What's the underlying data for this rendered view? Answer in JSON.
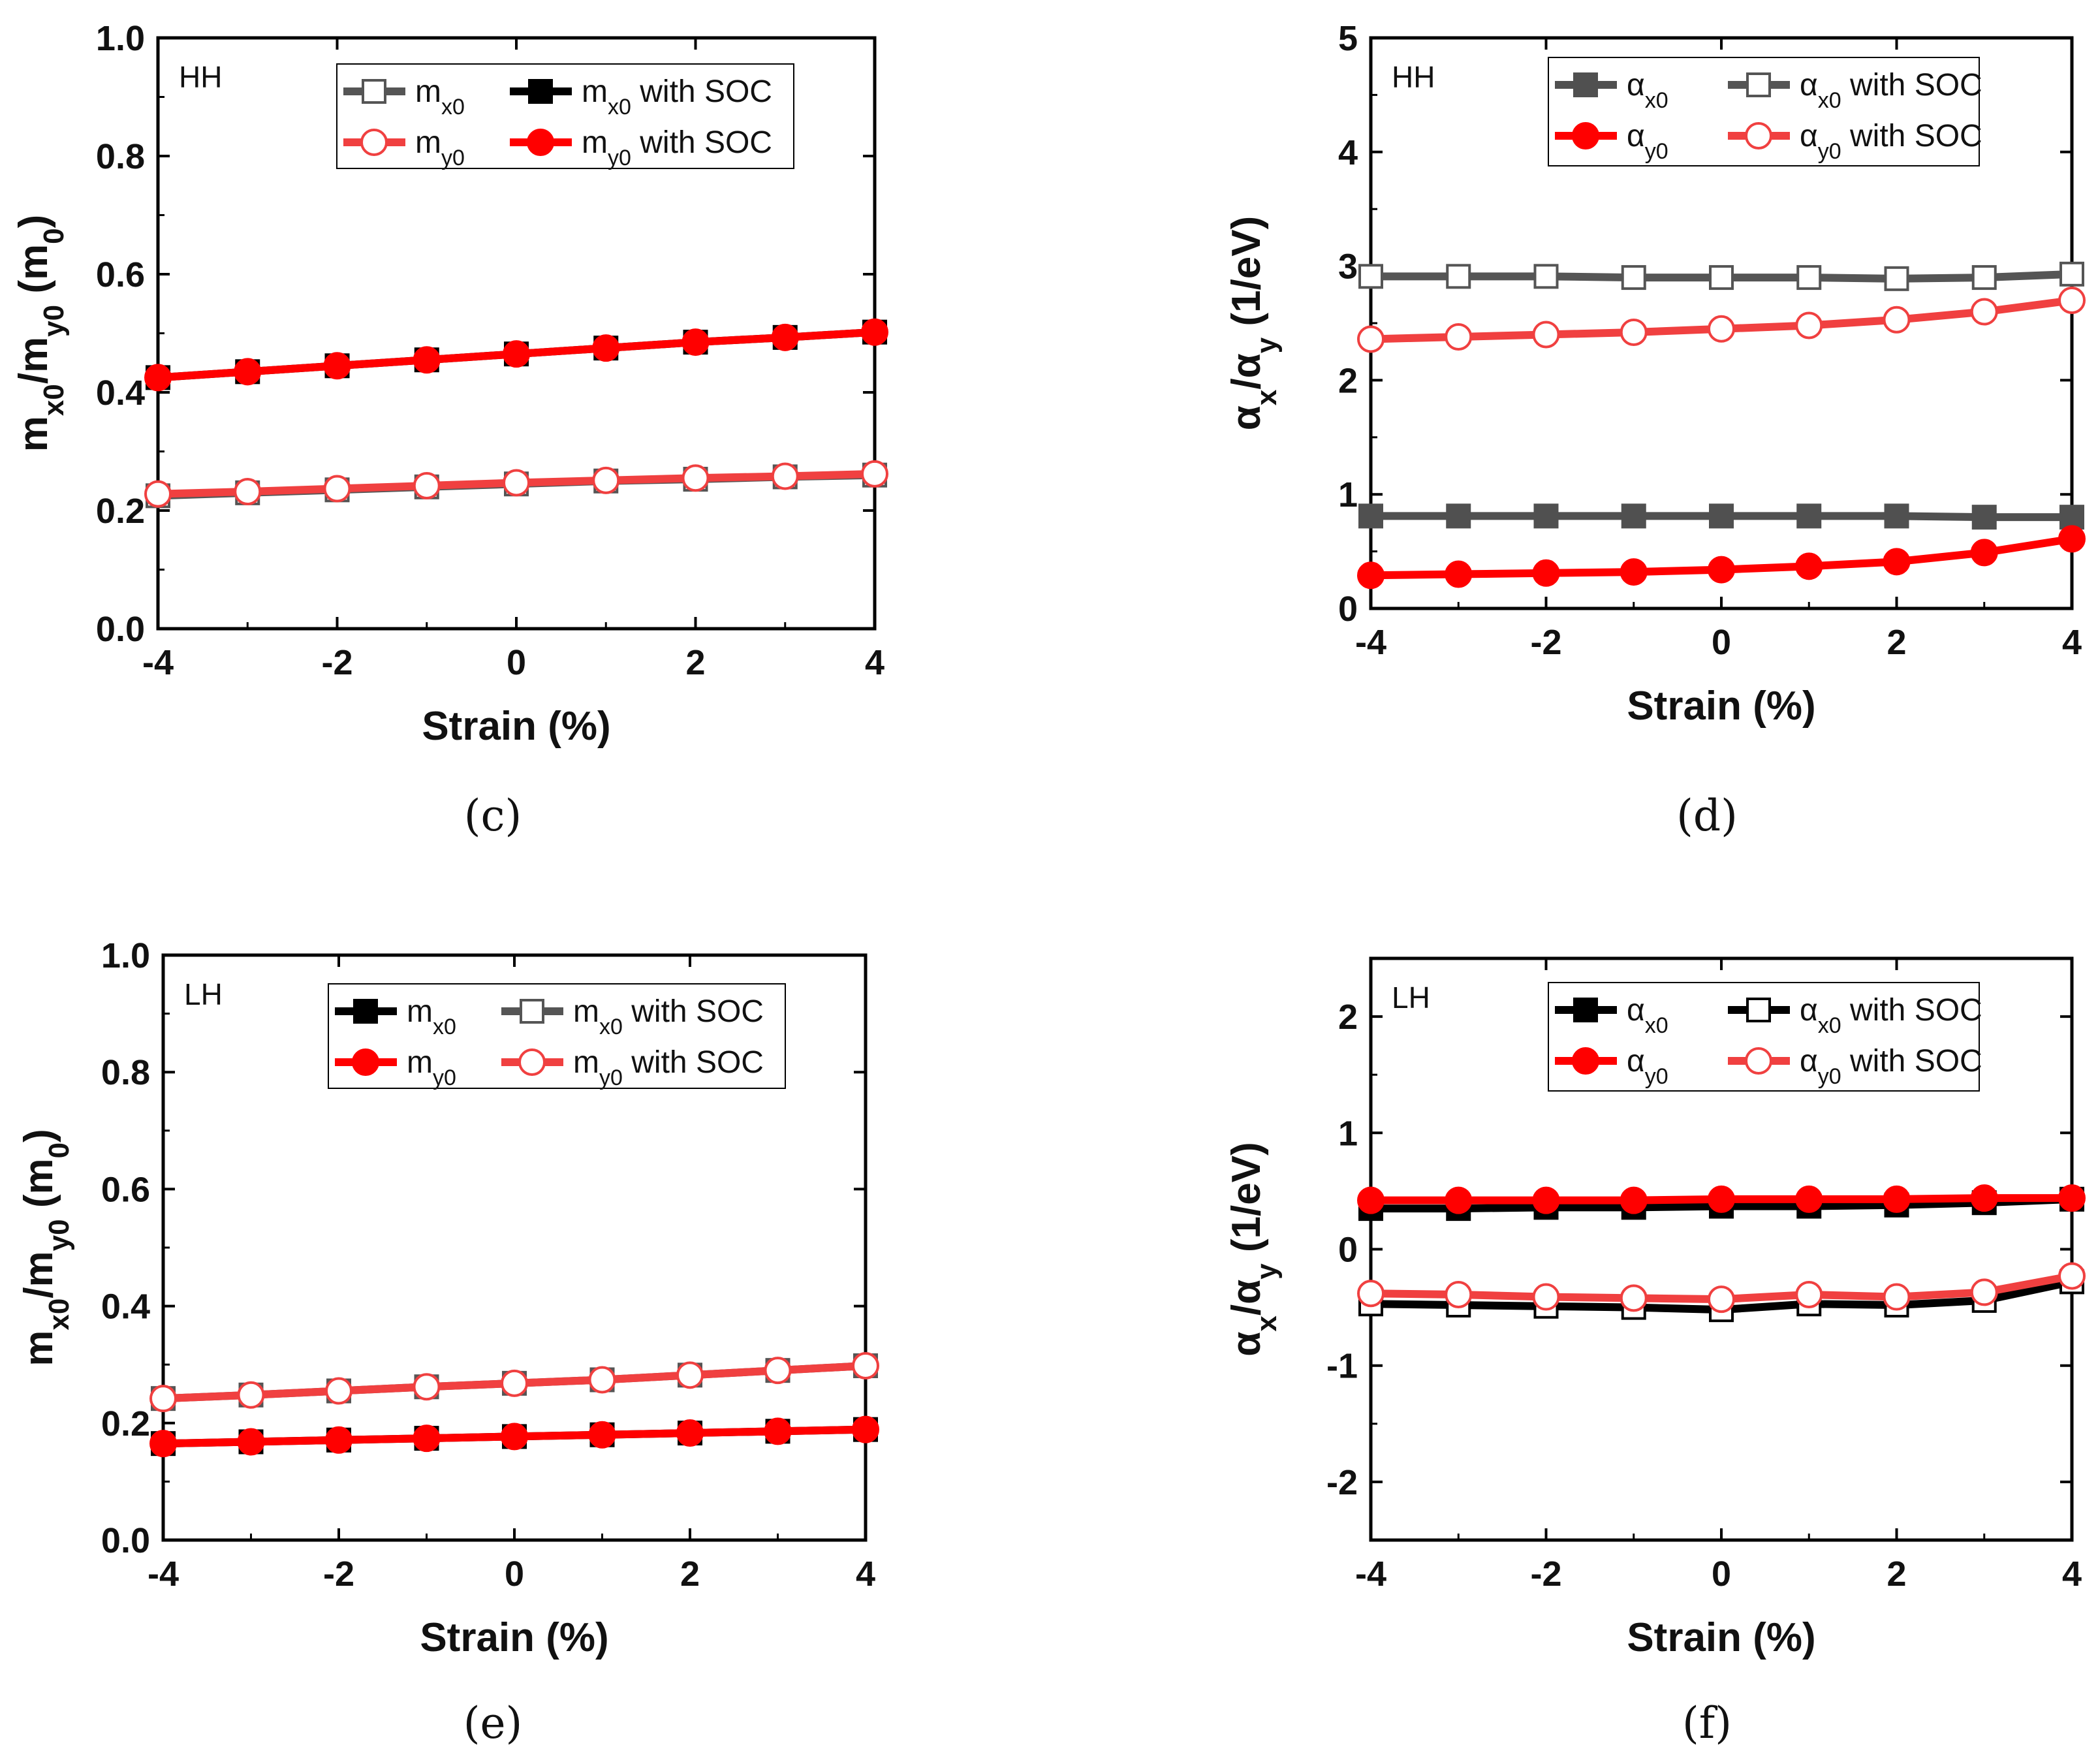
{
  "chart_data": [
    {
      "id": "c",
      "type": "line",
      "caption": "(c)",
      "tag": "HH",
      "xlabel": "Strain (%)",
      "ylabel": {
        "parts": [
          [
            "m",
            ""
          ],
          [
            "x0",
            "sub"
          ],
          [
            "/m",
            ""
          ],
          [
            "y0",
            "sub"
          ],
          [
            " (m",
            ""
          ],
          [
            "0",
            "sub"
          ],
          [
            ")",
            ""
          ]
        ]
      },
      "xlim": [
        -4,
        4
      ],
      "ylim": [
        0,
        1
      ],
      "xticks": [
        -4,
        -2,
        0,
        2,
        4
      ],
      "yticks": [
        0.0,
        0.2,
        0.4,
        0.6,
        0.8,
        1.0
      ],
      "xtick_labels": [
        "-4",
        "-2",
        "0",
        "2",
        "4"
      ],
      "ytick_labels": [
        "0.0",
        "0.2",
        "0.4",
        "0.6",
        "0.8",
        "1.0"
      ],
      "legend": {
        "placement": "top-right",
        "columns": 2
      },
      "x": [
        -4,
        -3,
        -2,
        -1,
        0,
        1,
        2,
        3,
        4
      ],
      "series": [
        {
          "name": "mx0",
          "label_main": "m",
          "label_sub": "x0",
          "label_suffix": "",
          "color": "#555555",
          "marker": "square",
          "fill": "#ffffff",
          "values": [
            0.225,
            0.23,
            0.235,
            0.24,
            0.245,
            0.25,
            0.253,
            0.257,
            0.26
          ]
        },
        {
          "name": "mx0 with SOC",
          "label_main": "m",
          "label_sub": "x0",
          "label_suffix": " with SOC",
          "color": "#000000",
          "marker": "square",
          "fill": "#000000",
          "values": [
            0.425,
            0.435,
            0.445,
            0.455,
            0.465,
            0.475,
            0.485,
            0.493,
            0.502
          ]
        },
        {
          "name": "my0",
          "label_main": "m",
          "label_sub": "y0",
          "label_suffix": "",
          "color": "#f04040",
          "marker": "circle",
          "fill": "#ffffff",
          "values": [
            0.228,
            0.232,
            0.237,
            0.242,
            0.247,
            0.251,
            0.255,
            0.258,
            0.262
          ]
        },
        {
          "name": "my0 with SOC",
          "label_main": "m",
          "label_sub": "y0",
          "label_suffix": " with SOC",
          "color": "#ff0000",
          "marker": "circle",
          "fill": "#ff0000",
          "values": [
            0.425,
            0.435,
            0.445,
            0.455,
            0.465,
            0.475,
            0.485,
            0.493,
            0.502
          ]
        }
      ]
    },
    {
      "id": "d",
      "type": "line",
      "caption": "(d)",
      "tag": "HH",
      "xlabel": "Strain (%)",
      "ylabel": {
        "parts": [
          [
            "α",
            ""
          ],
          [
            "x",
            "sub"
          ],
          [
            "/α",
            ""
          ],
          [
            "y",
            "sub"
          ],
          [
            " (1/eV)",
            ""
          ]
        ]
      },
      "xlim": [
        -4,
        4
      ],
      "ylim": [
        0,
        5
      ],
      "xticks": [
        -4,
        -2,
        0,
        2,
        4
      ],
      "yticks": [
        0,
        1,
        2,
        3,
        4,
        5
      ],
      "xtick_labels": [
        "-4",
        "-2",
        "0",
        "2",
        "4"
      ],
      "ytick_labels": [
        "0",
        "1",
        "2",
        "3",
        "4",
        "5"
      ],
      "legend": {
        "placement": "top-right",
        "columns": 2
      },
      "x": [
        -4,
        -3,
        -2,
        -1,
        0,
        1,
        2,
        3,
        4
      ],
      "series": [
        {
          "name": "αx0",
          "label_main": "α",
          "label_sub": "x0",
          "label_suffix": "",
          "color": "#505050",
          "marker": "square",
          "fill": "#505050",
          "values": [
            0.81,
            0.81,
            0.81,
            0.81,
            0.81,
            0.81,
            0.81,
            0.8,
            0.8
          ]
        },
        {
          "name": "αx0 with SOC",
          "label_main": "α",
          "label_sub": "x0",
          "label_suffix": " with SOC",
          "color": "#555555",
          "marker": "square",
          "fill": "#ffffff",
          "values": [
            2.91,
            2.91,
            2.91,
            2.9,
            2.9,
            2.9,
            2.89,
            2.9,
            2.93
          ]
        },
        {
          "name": "αy0",
          "label_main": "α",
          "label_sub": "y0",
          "label_suffix": "",
          "color": "#ff0000",
          "marker": "circle",
          "fill": "#ff0000",
          "values": [
            0.29,
            0.3,
            0.31,
            0.32,
            0.34,
            0.37,
            0.41,
            0.49,
            0.61
          ]
        },
        {
          "name": "αy0 with SOC",
          "label_main": "α",
          "label_sub": "y0",
          "label_suffix": " with SOC",
          "color": "#f04040",
          "marker": "circle",
          "fill": "#ffffff",
          "values": [
            2.36,
            2.38,
            2.4,
            2.42,
            2.45,
            2.48,
            2.53,
            2.6,
            2.7
          ]
        }
      ]
    },
    {
      "id": "e",
      "type": "line",
      "caption": "(e)",
      "tag": "LH",
      "xlabel": "Strain (%)",
      "ylabel": {
        "parts": [
          [
            "m",
            ""
          ],
          [
            "x0",
            "sub"
          ],
          [
            "/m",
            ""
          ],
          [
            "y0",
            "sub"
          ],
          [
            " (m",
            ""
          ],
          [
            "0",
            "sub"
          ],
          [
            ")",
            ""
          ]
        ]
      },
      "xlim": [
        -4,
        4
      ],
      "ylim": [
        0,
        1
      ],
      "xticks": [
        -4,
        -2,
        0,
        2,
        4
      ],
      "yticks": [
        0.0,
        0.2,
        0.4,
        0.6,
        0.8,
        1.0
      ],
      "xtick_labels": [
        "-4",
        "-2",
        "0",
        "2",
        "4"
      ],
      "ytick_labels": [
        "0.0",
        "0.2",
        "0.4",
        "0.6",
        "0.8",
        "1.0"
      ],
      "legend": {
        "placement": "top-right",
        "columns": 2
      },
      "x": [
        -4,
        -3,
        -2,
        -1,
        0,
        1,
        2,
        3,
        4
      ],
      "series": [
        {
          "name": "mx0",
          "label_main": "m",
          "label_sub": "x0",
          "label_suffix": "",
          "color": "#000000",
          "marker": "square",
          "fill": "#000000",
          "values": [
            0.165,
            0.168,
            0.171,
            0.174,
            0.177,
            0.18,
            0.183,
            0.186,
            0.189
          ]
        },
        {
          "name": "mx0 with SOC",
          "label_main": "m",
          "label_sub": "x0",
          "label_suffix": " with SOC",
          "color": "#555555",
          "marker": "square",
          "fill": "#ffffff",
          "values": [
            0.242,
            0.248,
            0.255,
            0.262,
            0.268,
            0.274,
            0.282,
            0.29,
            0.298
          ]
        },
        {
          "name": "my0",
          "label_main": "m",
          "label_sub": "y0",
          "label_suffix": "",
          "color": "#ff0000",
          "marker": "circle",
          "fill": "#ff0000",
          "values": [
            0.165,
            0.168,
            0.171,
            0.174,
            0.177,
            0.18,
            0.183,
            0.186,
            0.189
          ]
        },
        {
          "name": "my0 with SOC",
          "label_main": "m",
          "label_sub": "y0",
          "label_suffix": " with SOC",
          "color": "#f04040",
          "marker": "circle",
          "fill": "#ffffff",
          "values": [
            0.242,
            0.248,
            0.255,
            0.262,
            0.268,
            0.274,
            0.282,
            0.29,
            0.298
          ]
        }
      ]
    },
    {
      "id": "f",
      "type": "line",
      "caption": "(f)",
      "tag": "LH",
      "xlabel": "Strain (%)",
      "ylabel": {
        "parts": [
          [
            "α",
            ""
          ],
          [
            "x",
            "sub"
          ],
          [
            "/α",
            ""
          ],
          [
            "y",
            "sub"
          ],
          [
            " (1/eV)",
            ""
          ]
        ]
      },
      "xlim": [
        -4,
        4
      ],
      "ylim": [
        -2.5,
        2.5
      ],
      "xticks": [
        -4,
        -2,
        0,
        2,
        4
      ],
      "yticks": [
        -2,
        -1,
        0,
        1,
        2
      ],
      "xtick_labels": [
        "-4",
        "-2",
        "0",
        "2",
        "4"
      ],
      "ytick_labels": [
        "-2",
        "-1",
        "0",
        "1",
        "2"
      ],
      "legend": {
        "placement": "top-right",
        "columns": 2
      },
      "x": [
        -4,
        -3,
        -2,
        -1,
        0,
        1,
        2,
        3,
        4
      ],
      "series": [
        {
          "name": "αx0",
          "label_main": "α",
          "label_sub": "x0",
          "label_suffix": "",
          "color": "#000000",
          "marker": "square",
          "fill": "#000000",
          "values": [
            0.35,
            0.35,
            0.36,
            0.36,
            0.37,
            0.37,
            0.38,
            0.4,
            0.43
          ]
        },
        {
          "name": "αx0 with SOC",
          "label_main": "α",
          "label_sub": "x0",
          "label_suffix": " with SOC",
          "color": "#000000",
          "marker": "square",
          "fill": "#ffffff",
          "values": [
            -0.47,
            -0.48,
            -0.49,
            -0.5,
            -0.52,
            -0.47,
            -0.48,
            -0.44,
            -0.28
          ]
        },
        {
          "name": "αy0",
          "label_main": "α",
          "label_sub": "y0",
          "label_suffix": "",
          "color": "#ff0000",
          "marker": "circle",
          "fill": "#ff0000",
          "values": [
            0.42,
            0.42,
            0.42,
            0.42,
            0.43,
            0.43,
            0.43,
            0.44,
            0.44
          ]
        },
        {
          "name": "αy0 with SOC",
          "label_main": "α",
          "label_sub": "y0",
          "label_suffix": " with SOC",
          "color": "#f04040",
          "marker": "circle",
          "fill": "#ffffff",
          "values": [
            -0.38,
            -0.39,
            -0.41,
            -0.42,
            -0.43,
            -0.39,
            -0.41,
            -0.37,
            -0.23
          ]
        }
      ]
    }
  ]
}
